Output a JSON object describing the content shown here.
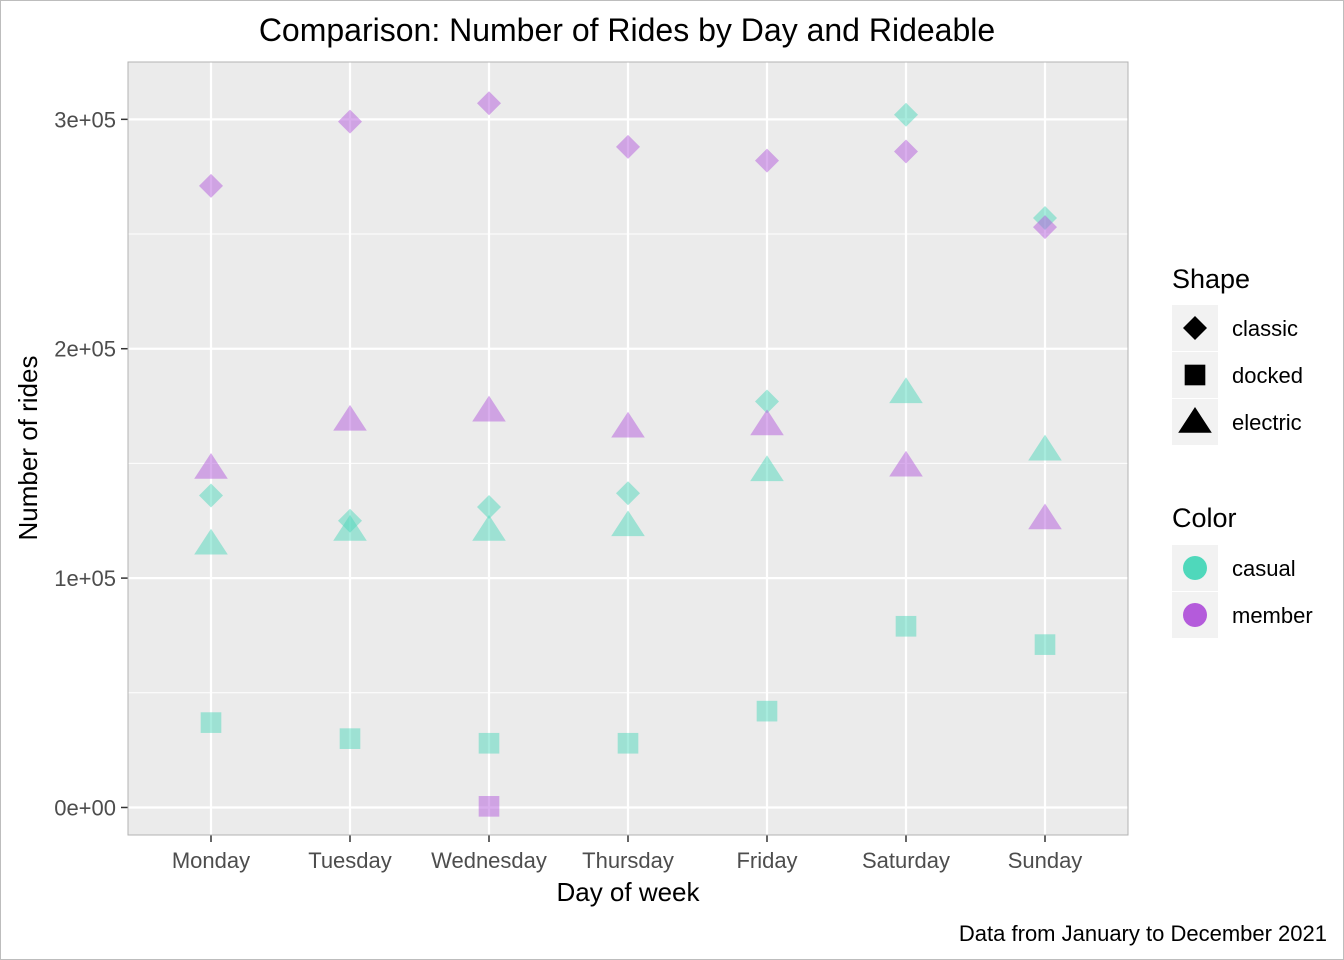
{
  "chart_data": {
    "type": "scatter",
    "title": "Comparison: Number of Rides by Day and Rideable",
    "xlabel": "Day of week",
    "ylabel": "Number of rides",
    "caption": "Data from January to December 2021",
    "categories": [
      "Monday",
      "Tuesday",
      "Wednesday",
      "Thursday",
      "Friday",
      "Saturday",
      "Sunday"
    ],
    "ylim": [
      -12000,
      325000
    ],
    "y_ticks": [
      0,
      100000,
      200000,
      300000
    ],
    "y_tick_labels": [
      "0e+00",
      "1e+05",
      "2e+05",
      "3e+05"
    ],
    "grid": true,
    "legend_placement": "right",
    "shape_legend": {
      "title": "Shape",
      "entries": [
        {
          "label": "classic",
          "shape": "diamond"
        },
        {
          "label": "docked",
          "shape": "square"
        },
        {
          "label": "electric",
          "shape": "triangle"
        }
      ]
    },
    "color_legend": {
      "title": "Color",
      "entries": [
        {
          "label": "casual",
          "color": "#4fd8bb"
        },
        {
          "label": "member",
          "color": "#b45bdb"
        }
      ]
    },
    "series": [
      {
        "rideable": "classic",
        "rider": "casual",
        "values": [
          136000,
          125000,
          131000,
          137000,
          177000,
          302000,
          257000
        ]
      },
      {
        "rideable": "classic",
        "rider": "member",
        "values": [
          271000,
          299000,
          307000,
          288000,
          282000,
          286000,
          253000
        ]
      },
      {
        "rideable": "docked",
        "rider": "casual",
        "values": [
          37000,
          30000,
          28000,
          28000,
          42000,
          79000,
          71000
        ]
      },
      {
        "rideable": "docked",
        "rider": "member",
        "values": [
          null,
          null,
          500,
          null,
          null,
          null,
          null
        ]
      },
      {
        "rideable": "electric",
        "rider": "casual",
        "values": [
          115000,
          121000,
          121000,
          123000,
          147000,
          181000,
          156000
        ]
      },
      {
        "rideable": "electric",
        "rider": "member",
        "values": [
          148000,
          169000,
          173000,
          166000,
          167000,
          149000,
          126000
        ]
      }
    ]
  }
}
